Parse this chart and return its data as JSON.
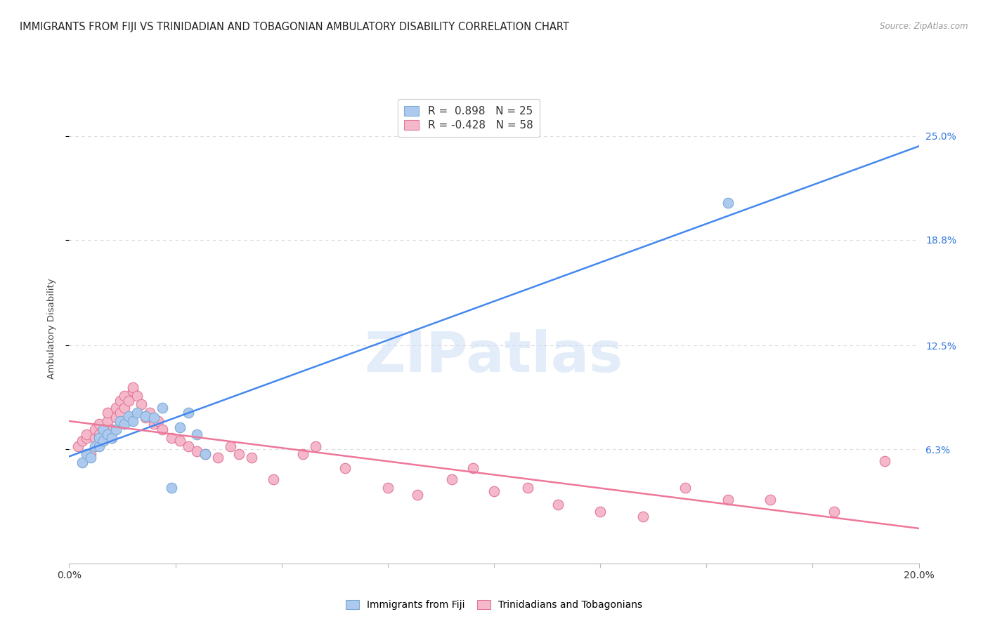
{
  "title": "IMMIGRANTS FROM FIJI VS TRINIDADIAN AND TOBAGONIAN AMBULATORY DISABILITY CORRELATION CHART",
  "source": "Source: ZipAtlas.com",
  "ylabel": "Ambulatory Disability",
  "yticks_labels": [
    "6.3%",
    "12.5%",
    "18.8%",
    "25.0%"
  ],
  "ytick_vals": [
    0.063,
    0.125,
    0.188,
    0.25
  ],
  "xlim": [
    0.0,
    0.2
  ],
  "ylim": [
    -0.005,
    0.275
  ],
  "fiji_color": "#adc9ee",
  "fiji_edge_color": "#7aaad4",
  "tnt_color": "#f5b8cb",
  "tnt_edge_color": "#e07898",
  "fiji_line_color": "#4488ee",
  "tnt_line_color": "#ee7799",
  "fiji_R": "0.898",
  "fiji_N": "25",
  "tnt_R": "-0.428",
  "tnt_N": "58",
  "legend_label_fiji": "Immigrants from Fiji",
  "legend_label_tnt": "Trinidadians and Tobagonians",
  "watermark": "ZIPatlas",
  "fiji_scatter_x": [
    0.003,
    0.004,
    0.005,
    0.006,
    0.007,
    0.007,
    0.008,
    0.008,
    0.009,
    0.01,
    0.011,
    0.012,
    0.013,
    0.014,
    0.015,
    0.016,
    0.018,
    0.02,
    0.022,
    0.024,
    0.026,
    0.028,
    0.03,
    0.032,
    0.155
  ],
  "fiji_scatter_y": [
    0.055,
    0.06,
    0.058,
    0.065,
    0.065,
    0.07,
    0.068,
    0.075,
    0.072,
    0.07,
    0.075,
    0.08,
    0.078,
    0.083,
    0.08,
    0.085,
    0.083,
    0.082,
    0.088,
    0.04,
    0.076,
    0.085,
    0.072,
    0.06,
    0.21
  ],
  "tnt_scatter_x": [
    0.002,
    0.003,
    0.004,
    0.004,
    0.005,
    0.006,
    0.006,
    0.007,
    0.007,
    0.008,
    0.008,
    0.009,
    0.009,
    0.01,
    0.01,
    0.011,
    0.011,
    0.012,
    0.012,
    0.013,
    0.013,
    0.014,
    0.015,
    0.015,
    0.016,
    0.017,
    0.018,
    0.019,
    0.02,
    0.021,
    0.022,
    0.024,
    0.026,
    0.028,
    0.03,
    0.032,
    0.035,
    0.038,
    0.04,
    0.043,
    0.048,
    0.055,
    0.058,
    0.065,
    0.075,
    0.082,
    0.09,
    0.095,
    0.1,
    0.108,
    0.115,
    0.125,
    0.135,
    0.145,
    0.155,
    0.165,
    0.18,
    0.192
  ],
  "tnt_scatter_y": [
    0.065,
    0.068,
    0.07,
    0.072,
    0.06,
    0.07,
    0.075,
    0.072,
    0.078,
    0.068,
    0.072,
    0.08,
    0.085,
    0.07,
    0.075,
    0.082,
    0.088,
    0.085,
    0.092,
    0.095,
    0.088,
    0.092,
    0.098,
    0.1,
    0.095,
    0.09,
    0.082,
    0.085,
    0.078,
    0.08,
    0.075,
    0.07,
    0.068,
    0.065,
    0.062,
    0.06,
    0.058,
    0.065,
    0.06,
    0.058,
    0.045,
    0.06,
    0.065,
    0.052,
    0.04,
    0.036,
    0.045,
    0.052,
    0.038,
    0.04,
    0.03,
    0.026,
    0.023,
    0.04,
    0.033,
    0.033,
    0.026,
    0.056
  ],
  "grid_color": "#dddddd",
  "background_color": "#ffffff",
  "title_fontsize": 10.5,
  "axis_label_fontsize": 9.5,
  "tick_fontsize": 10,
  "right_tick_color": "#3377dd"
}
